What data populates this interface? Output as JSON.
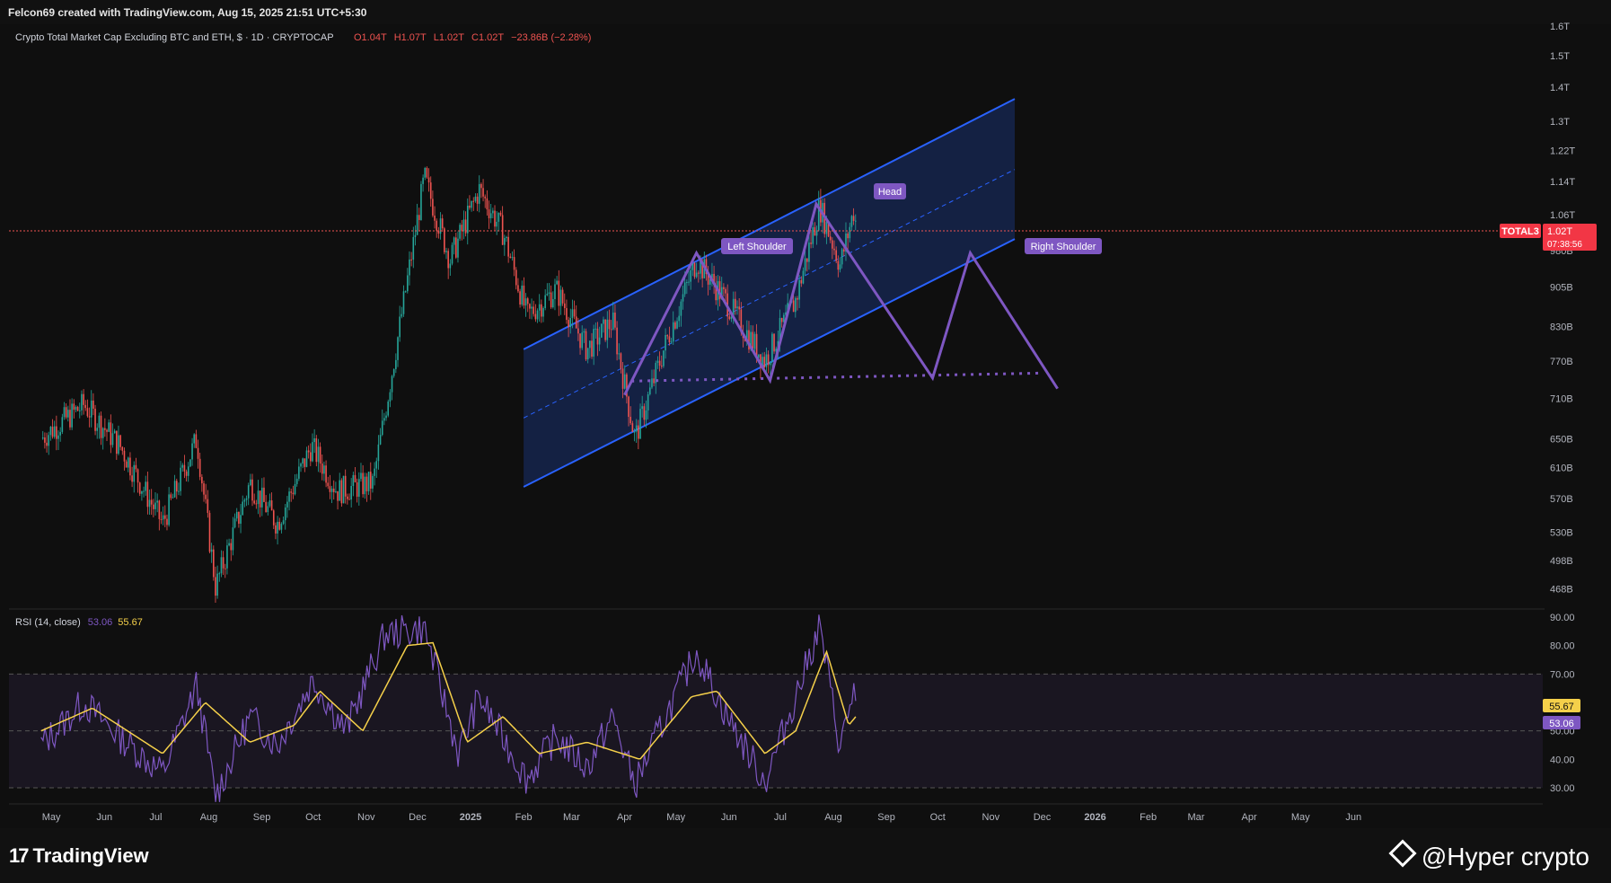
{
  "header": {
    "attribution": "Felcon69 created with TradingView.com, Aug 15, 2025 21:51 UTC+5:30"
  },
  "legend": {
    "title": "Crypto Total Market Cap Excluding BTC and ETH, $ · 1D · CRYPTOCAP",
    "open": "O1.04T",
    "high": "H1.07T",
    "low": "L1.02T",
    "close": "C1.02T",
    "change": "−23.86B (−2.28%)"
  },
  "rsi_legend": {
    "label": "RSI (14, close)",
    "rsi": "53.06",
    "ma": "55.67"
  },
  "price_badge": {
    "symbol": "TOTAL3",
    "price": "1.02T",
    "countdown": "07:38:56"
  },
  "rsi_badges": {
    "ma": "55.67",
    "rsi": "53.06"
  },
  "annotations": {
    "left_shoulder": "Left Shoulder",
    "head": "Head",
    "right_shoulder": "Right Shoulder"
  },
  "footer": {
    "brand": "TradingView",
    "credit": "@Hyper  crypto"
  },
  "colors": {
    "background": "#0f0f0f",
    "up": "#26a69a",
    "down": "#ef5350",
    "channel": "#2962ff",
    "pattern": "#7e57c2",
    "rsi": "#7e57c2",
    "rsi_ma": "#f5d04a",
    "badge_red": "#f23645"
  },
  "chart_data": [
    {
      "type": "candlestick",
      "title": "Crypto Total Market Cap Excluding BTC and ETH",
      "y_axis_ticks": [
        "1.6T",
        "1.5T",
        "1.4T",
        "1.3T",
        "1.22T",
        "1.14T",
        "1.06T",
        "980B",
        "905B",
        "830B",
        "770B",
        "710B",
        "650B",
        "610B",
        "570B",
        "530B",
        "498B",
        "468B"
      ],
      "x_axis_ticks": [
        "May",
        "Jun",
        "Jul",
        "Aug",
        "Sep",
        "Oct",
        "Nov",
        "Dec",
        "2025",
        "Feb",
        "Mar",
        "Apr",
        "May",
        "Jun",
        "Jul",
        "Aug",
        "Sep",
        "Oct",
        "Nov",
        "Dec",
        "2026",
        "Feb",
        "Mar",
        "Apr",
        "May",
        "Jun"
      ],
      "scale": "log",
      "last_price": "1.02T",
      "approx_path": [
        {
          "date": "2024-04-25",
          "close": 650
        },
        {
          "date": "2024-05-20",
          "close": 700
        },
        {
          "date": "2024-06-10",
          "close": 640
        },
        {
          "date": "2024-07-05",
          "close": 540
        },
        {
          "date": "2024-07-25",
          "close": 650
        },
        {
          "date": "2024-08-05",
          "close": 470
        },
        {
          "date": "2024-08-25",
          "close": 590
        },
        {
          "date": "2024-09-10",
          "close": 540
        },
        {
          "date": "2024-09-30",
          "close": 640
        },
        {
          "date": "2024-10-15",
          "close": 580
        },
        {
          "date": "2024-11-05",
          "close": 590
        },
        {
          "date": "2024-11-20",
          "close": 820
        },
        {
          "date": "2024-12-05",
          "close": 1150
        },
        {
          "date": "2024-12-20",
          "close": 960
        },
        {
          "date": "2025-01-06",
          "close": 1120
        },
        {
          "date": "2025-01-20",
          "close": 1020
        },
        {
          "date": "2025-02-03",
          "close": 850
        },
        {
          "date": "2025-02-20",
          "close": 900
        },
        {
          "date": "2025-03-10",
          "close": 790
        },
        {
          "date": "2025-03-25",
          "close": 840
        },
        {
          "date": "2025-04-07",
          "close": 650
        },
        {
          "date": "2025-04-25",
          "close": 800
        },
        {
          "date": "2025-05-13",
          "close": 960
        },
        {
          "date": "2025-05-30",
          "close": 880
        },
        {
          "date": "2025-06-22",
          "close": 770
        },
        {
          "date": "2025-07-10",
          "close": 880
        },
        {
          "date": "2025-07-24",
          "close": 1080
        },
        {
          "date": "2025-08-05",
          "close": 950
        },
        {
          "date": "2025-08-13",
          "close": 1070
        },
        {
          "date": "2025-08-15",
          "close": 1020
        }
      ]
    },
    {
      "type": "line",
      "title": "RSI (14, close)",
      "y_axis_ticks": [
        "90.00",
        "80.00",
        "70.00",
        "50.00",
        "40.00",
        "30.00"
      ],
      "ylim": [
        30,
        90
      ],
      "bands": [
        30,
        50,
        70
      ],
      "series": [
        {
          "name": "RSI",
          "last": 53.06,
          "approx_path": [
            {
              "date": "2024-04-25",
              "v": 45
            },
            {
              "date": "2024-05-20",
              "v": 60
            },
            {
              "date": "2024-06-10",
              "v": 48
            },
            {
              "date": "2024-07-05",
              "v": 35
            },
            {
              "date": "2024-07-25",
              "v": 66
            },
            {
              "date": "2024-08-05",
              "v": 27
            },
            {
              "date": "2024-08-25",
              "v": 55
            },
            {
              "date": "2024-09-10",
              "v": 45
            },
            {
              "date": "2024-10-01",
              "v": 68
            },
            {
              "date": "2024-10-20",
              "v": 50
            },
            {
              "date": "2024-11-12",
              "v": 84
            },
            {
              "date": "2024-12-05",
              "v": 86
            },
            {
              "date": "2024-12-25",
              "v": 42
            },
            {
              "date": "2025-01-06",
              "v": 62
            },
            {
              "date": "2025-02-03",
              "v": 33
            },
            {
              "date": "2025-02-20",
              "v": 48
            },
            {
              "date": "2025-03-10",
              "v": 37
            },
            {
              "date": "2025-03-25",
              "v": 55
            },
            {
              "date": "2025-04-07",
              "v": 31
            },
            {
              "date": "2025-04-25",
              "v": 55
            },
            {
              "date": "2025-05-13",
              "v": 78
            },
            {
              "date": "2025-05-30",
              "v": 56
            },
            {
              "date": "2025-06-22",
              "v": 32
            },
            {
              "date": "2025-07-10",
              "v": 62
            },
            {
              "date": "2025-07-24",
              "v": 87
            },
            {
              "date": "2025-08-05",
              "v": 44
            },
            {
              "date": "2025-08-13",
              "v": 65
            },
            {
              "date": "2025-08-15",
              "v": 53
            }
          ]
        },
        {
          "name": "MA",
          "last": 55.67,
          "approx_path": [
            {
              "date": "2024-04-25",
              "v": 50
            },
            {
              "date": "2024-05-25",
              "v": 58
            },
            {
              "date": "2024-07-05",
              "v": 42
            },
            {
              "date": "2024-07-30",
              "v": 60
            },
            {
              "date": "2024-08-25",
              "v": 46
            },
            {
              "date": "2024-09-20",
              "v": 52
            },
            {
              "date": "2024-10-05",
              "v": 64
            },
            {
              "date": "2024-10-30",
              "v": 50
            },
            {
              "date": "2024-11-25",
              "v": 80
            },
            {
              "date": "2024-12-10",
              "v": 81
            },
            {
              "date": "2024-12-30",
              "v": 46
            },
            {
              "date": "2025-01-20",
              "v": 55
            },
            {
              "date": "2025-02-10",
              "v": 42
            },
            {
              "date": "2025-03-10",
              "v": 46
            },
            {
              "date": "2025-04-10",
              "v": 40
            },
            {
              "date": "2025-05-10",
              "v": 62
            },
            {
              "date": "2025-05-25",
              "v": 64
            },
            {
              "date": "2025-06-22",
              "v": 42
            },
            {
              "date": "2025-07-10",
              "v": 50
            },
            {
              "date": "2025-07-28",
              "v": 78
            },
            {
              "date": "2025-08-10",
              "v": 52
            },
            {
              "date": "2025-08-15",
              "v": 55.67
            }
          ]
        }
      ]
    }
  ]
}
